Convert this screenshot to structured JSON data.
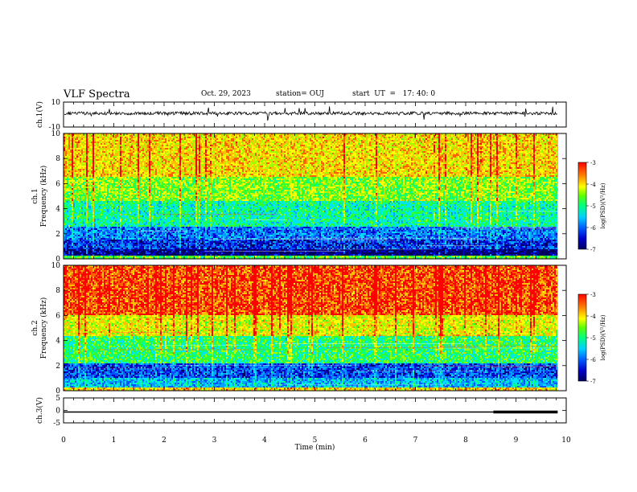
{
  "header": {
    "title": "VLF Spectra",
    "date": "Oct. 29, 2023",
    "station": "station= OUJ",
    "start": "start  UT  =   17: 40: 0"
  },
  "colors": {
    "spectrum": [
      "#000060",
      "#0000c8",
      "#0050ff",
      "#00a0ff",
      "#00e0ff",
      "#00ff90",
      "#30ff30",
      "#a0ff00",
      "#ffff00",
      "#ffc000",
      "#ff6000",
      "#ff0000"
    ],
    "background": "#ffffff",
    "trace": "#000000"
  },
  "chart_data": [
    {
      "id": "ch1-waveform",
      "type": "line",
      "ylabel": "ch.1(V)",
      "ylim": [
        -10,
        10
      ],
      "y_ticks": [
        "10",
        "-10"
      ],
      "xlim": [
        0,
        10
      ],
      "description_values": {
        "mean": 1.0,
        "noise_amplitude": 2.5
      }
    },
    {
      "id": "ch1-spectrogram",
      "type": "heatmap",
      "ylabel": "ch.1\nFrequency (kHz)",
      "ylabel_lines": [
        "ch.1",
        "Frequency  (kHz)"
      ],
      "ylim": [
        0,
        10
      ],
      "y_ticks": [
        "0",
        "2",
        "4",
        "6",
        "8",
        "10"
      ],
      "colorbar": {
        "label": "log(PSD)(V²/Hz)",
        "ticks": [
          "-3",
          "-4",
          "-5",
          "-6",
          "-7"
        ],
        "range": [
          -7,
          -3
        ]
      },
      "bands_khz": [
        {
          "f": [
            0.0,
            0.3
          ],
          "level": -4.8
        },
        {
          "f": [
            0.3,
            0.8
          ],
          "level": -6.8
        },
        {
          "f": [
            0.8,
            1.6
          ],
          "level": -6.3
        },
        {
          "f": [
            1.6,
            2.6
          ],
          "level": -6.0
        },
        {
          "f": [
            2.6,
            4.6
          ],
          "level": -5.2
        },
        {
          "f": [
            4.6,
            6.5
          ],
          "level": -4.6
        },
        {
          "f": [
            6.5,
            10.0
          ],
          "level": -4.0
        }
      ]
    },
    {
      "id": "ch2-spectrogram",
      "type": "heatmap",
      "ylabel": "ch.2\nFrequency (kHz)",
      "ylabel_lines": [
        "ch.2",
        "Frequency  (kHz)"
      ],
      "ylim": [
        0,
        10
      ],
      "y_ticks": [
        "0",
        "2",
        "4",
        "6",
        "8",
        "10"
      ],
      "colorbar": {
        "label": "log(PSD)(V²/Hz)",
        "ticks": [
          "-3",
          "-4",
          "-5",
          "-6",
          "-7"
        ],
        "range": [
          -7,
          -3
        ]
      },
      "bands_khz": [
        {
          "f": [
            0.0,
            0.3
          ],
          "level": -4.0
        },
        {
          "f": [
            0.3,
            1.0
          ],
          "level": -5.7
        },
        {
          "f": [
            1.0,
            2.2
          ],
          "level": -6.2
        },
        {
          "f": [
            2.2,
            4.4
          ],
          "level": -5.0
        },
        {
          "f": [
            4.4,
            6.0
          ],
          "level": -4.2
        },
        {
          "f": [
            6.0,
            10.0
          ],
          "level": -3.4
        }
      ]
    },
    {
      "id": "ch3-waveform",
      "type": "line",
      "ylabel": "ch.3(V)",
      "ylim": [
        -5,
        5
      ],
      "y_ticks": [
        "5",
        "0",
        "-5"
      ],
      "xlim": [
        0,
        10
      ],
      "segments": [
        {
          "x": [
            0.0,
            8.55
          ],
          "y": 0.0
        },
        {
          "x": [
            8.55,
            9.83
          ],
          "y": 0.0,
          "thick": true
        }
      ]
    }
  ],
  "x_axis": {
    "label": "Time  (min)",
    "ticks": [
      "0",
      "1",
      "2",
      "3",
      "4",
      "5",
      "6",
      "7",
      "8",
      "9",
      "10"
    ],
    "xlim": [
      0,
      10
    ],
    "data_end_min": 9.83
  }
}
